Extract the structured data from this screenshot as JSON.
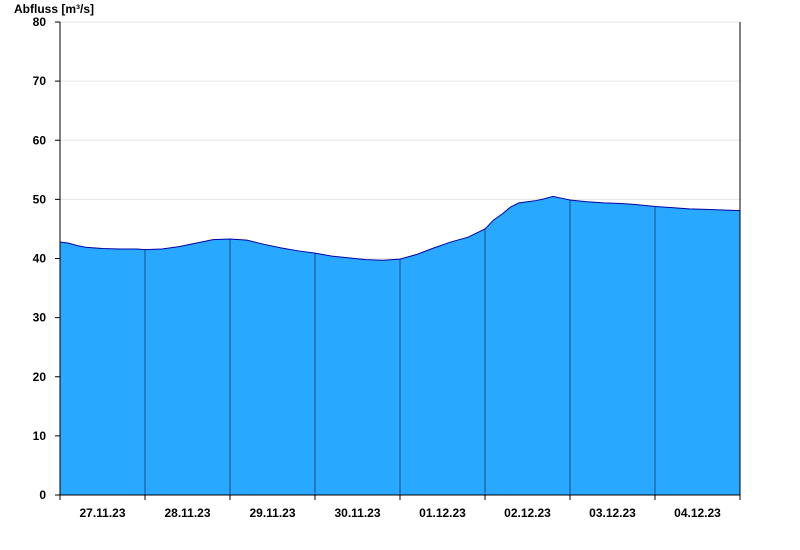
{
  "chart_data": {
    "type": "area",
    "ylabel": "Abfluss [m³/s]",
    "ylim": [
      0,
      80
    ],
    "yticks": [
      0,
      10,
      20,
      30,
      40,
      50,
      60,
      70,
      80
    ],
    "xlim": [
      0,
      8
    ],
    "day_labels": [
      "27.11.23",
      "28.11.23",
      "29.11.23",
      "30.11.23",
      "01.12.23",
      "02.12.23",
      "03.12.23",
      "04.12.23"
    ],
    "grid": true,
    "colors": {
      "fill": "#29A8FF",
      "line": "#0000AA",
      "grid": "#E6E6E6",
      "axis": "#000000"
    },
    "x": [
      0,
      0.1,
      0.2,
      0.3,
      0.5,
      0.7,
      0.9,
      1.0,
      1.2,
      1.4,
      1.6,
      1.8,
      2.0,
      2.2,
      2.4,
      2.6,
      2.8,
      3.0,
      3.2,
      3.4,
      3.6,
      3.8,
      4.0,
      4.2,
      4.4,
      4.6,
      4.8,
      5.0,
      5.1,
      5.2,
      5.3,
      5.4,
      5.5,
      5.6,
      5.7,
      5.8,
      5.9,
      6.0,
      6.2,
      6.4,
      6.6,
      6.8,
      7.0,
      7.2,
      7.4,
      7.6,
      7.8,
      8.0
    ],
    "values": [
      42.8,
      42.6,
      42.2,
      41.9,
      41.7,
      41.6,
      41.6,
      41.5,
      41.6,
      42.0,
      42.6,
      43.2,
      43.3,
      43.1,
      42.4,
      41.8,
      41.3,
      40.9,
      40.4,
      40.1,
      39.8,
      39.7,
      39.9,
      40.7,
      41.8,
      42.8,
      43.6,
      45.0,
      46.5,
      47.5,
      48.7,
      49.4,
      49.6,
      49.8,
      50.1,
      50.5,
      50.2,
      49.9,
      49.6,
      49.4,
      49.3,
      49.1,
      48.8,
      48.6,
      48.4,
      48.3,
      48.2,
      48.1
    ]
  }
}
